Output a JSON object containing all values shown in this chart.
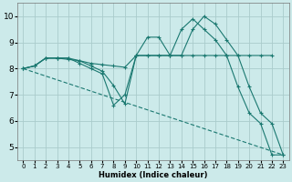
{
  "bg_color": "#cceaea",
  "grid_color": "#aacccc",
  "line_color": "#1a7870",
  "xlabel": "Humidex (Indice chaleur)",
  "xlim": [
    -0.5,
    23.5
  ],
  "ylim": [
    4.5,
    10.5
  ],
  "yticks": [
    5,
    6,
    7,
    8,
    9,
    10
  ],
  "xticks": [
    0,
    1,
    2,
    3,
    4,
    5,
    6,
    7,
    8,
    9,
    10,
    11,
    12,
    13,
    14,
    15,
    16,
    17,
    18,
    19,
    20,
    21,
    22,
    23
  ],
  "line1_x": [
    0,
    1,
    2,
    3,
    4,
    5,
    6,
    7,
    8,
    9,
    10,
    11,
    12,
    13,
    14,
    15,
    16,
    17,
    18,
    19,
    20,
    21,
    22,
    23
  ],
  "line1_y": [
    8.0,
    8.1,
    8.4,
    8.4,
    8.4,
    8.2,
    8.0,
    7.8,
    6.6,
    7.0,
    8.5,
    9.2,
    9.2,
    8.5,
    9.5,
    9.9,
    9.5,
    9.1,
    8.5,
    7.3,
    6.3,
    5.9,
    4.7,
    4.7
  ],
  "line2_x": [
    0,
    1,
    2,
    3,
    4,
    5,
    6,
    7,
    8,
    9,
    10,
    11,
    12,
    13,
    14,
    15,
    16,
    17,
    18,
    19,
    20,
    21,
    22
  ],
  "line2_y": [
    8.0,
    8.1,
    8.4,
    8.4,
    8.4,
    8.3,
    8.2,
    8.15,
    8.1,
    8.05,
    8.5,
    8.5,
    8.5,
    8.5,
    8.5,
    8.5,
    8.5,
    8.5,
    8.5,
    8.5,
    8.5,
    8.5,
    8.5
  ],
  "line3_x": [
    0,
    1,
    2,
    3,
    4,
    5,
    6,
    7,
    8,
    9,
    10,
    11,
    12,
    13,
    14,
    15,
    16,
    17,
    18,
    19,
    20,
    21,
    22,
    23
  ],
  "line3_y": [
    8.0,
    8.1,
    8.4,
    8.4,
    8.35,
    8.3,
    8.1,
    7.9,
    7.35,
    6.65,
    8.5,
    8.5,
    8.5,
    8.5,
    8.5,
    9.5,
    10.0,
    9.7,
    9.1,
    8.5,
    7.3,
    6.3,
    5.9,
    4.7
  ],
  "line4_x": [
    0,
    23
  ],
  "line4_y": [
    8.0,
    4.7
  ]
}
